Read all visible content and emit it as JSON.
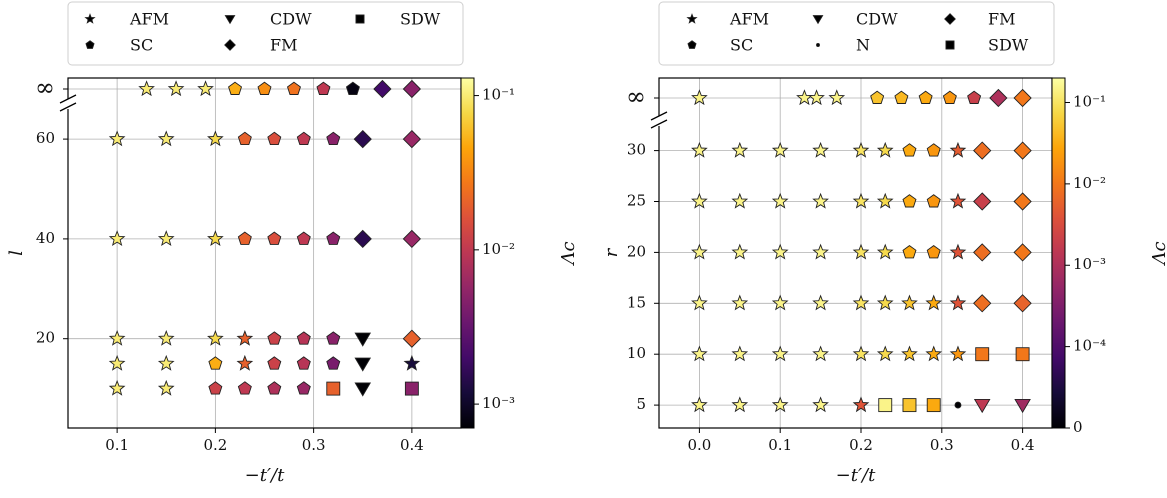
{
  "chart_data": [
    {
      "type": "scatter",
      "xlabel": "−t′/t",
      "ylabel": "l",
      "xlim": [
        0.05,
        0.45
      ],
      "x_ticks": [
        0.1,
        0.2,
        0.3,
        0.4
      ],
      "x_tick_labels": [
        "0.1",
        "0.2",
        "0.3",
        "0.4"
      ],
      "y_ticks": [
        20,
        40,
        60
      ],
      "y_tick_labels": [
        "20",
        "40",
        "60"
      ],
      "y_break": true,
      "y_top_label": "∞",
      "grid": true,
      "legend": {
        "placement": "top",
        "entries": [
          {
            "label": "AFM",
            "marker": "star"
          },
          {
            "label": "CDW",
            "marker": "triangle-down"
          },
          {
            "label": "SDW",
            "marker": "square"
          },
          {
            "label": "SC",
            "marker": "pentagon"
          },
          {
            "label": "FM",
            "marker": "diamond"
          }
        ]
      },
      "colorbar": {
        "label": "Λc",
        "scale": "log",
        "range": [
          0.0007,
          0.13
        ],
        "tick_values": [
          0.1,
          0.01,
          0.001
        ],
        "tick_labels": [
          "10⁻¹",
          "10⁻²",
          "10⁻³"
        ]
      },
      "points": [
        {
          "x": 0.13,
          "y": "∞",
          "phase": "AFM",
          "lambda": 0.1
        },
        {
          "x": 0.16,
          "y": "∞",
          "phase": "AFM",
          "lambda": 0.1
        },
        {
          "x": 0.19,
          "y": "∞",
          "phase": "AFM",
          "lambda": 0.1
        },
        {
          "x": 0.22,
          "y": "∞",
          "phase": "SC",
          "lambda": 0.05
        },
        {
          "x": 0.25,
          "y": "∞",
          "phase": "SC",
          "lambda": 0.035
        },
        {
          "x": 0.28,
          "y": "∞",
          "phase": "SC",
          "lambda": 0.025
        },
        {
          "x": 0.31,
          "y": "∞",
          "phase": "SC",
          "lambda": 0.01
        },
        {
          "x": 0.34,
          "y": "∞",
          "phase": "SC",
          "lambda": 0.0008
        },
        {
          "x": 0.37,
          "y": "∞",
          "phase": "FM",
          "lambda": 0.002
        },
        {
          "x": 0.4,
          "y": "∞",
          "phase": "FM",
          "lambda": 0.005
        },
        {
          "x": 0.1,
          "y": 60,
          "phase": "AFM",
          "lambda": 0.1
        },
        {
          "x": 0.15,
          "y": 60,
          "phase": "AFM",
          "lambda": 0.1
        },
        {
          "x": 0.2,
          "y": 60,
          "phase": "AFM",
          "lambda": 0.08
        },
        {
          "x": 0.23,
          "y": 60,
          "phase": "SC",
          "lambda": 0.02
        },
        {
          "x": 0.26,
          "y": 60,
          "phase": "SC",
          "lambda": 0.015
        },
        {
          "x": 0.29,
          "y": 60,
          "phase": "SC",
          "lambda": 0.01
        },
        {
          "x": 0.32,
          "y": 60,
          "phase": "SC",
          "lambda": 0.005
        },
        {
          "x": 0.35,
          "y": 60,
          "phase": "FM",
          "lambda": 0.0015
        },
        {
          "x": 0.4,
          "y": 60,
          "phase": "FM",
          "lambda": 0.006
        },
        {
          "x": 0.1,
          "y": 40,
          "phase": "AFM",
          "lambda": 0.1
        },
        {
          "x": 0.15,
          "y": 40,
          "phase": "AFM",
          "lambda": 0.1
        },
        {
          "x": 0.2,
          "y": 40,
          "phase": "AFM",
          "lambda": 0.08
        },
        {
          "x": 0.23,
          "y": 40,
          "phase": "SC",
          "lambda": 0.02
        },
        {
          "x": 0.26,
          "y": 40,
          "phase": "SC",
          "lambda": 0.015
        },
        {
          "x": 0.29,
          "y": 40,
          "phase": "SC",
          "lambda": 0.01
        },
        {
          "x": 0.32,
          "y": 40,
          "phase": "SC",
          "lambda": 0.005
        },
        {
          "x": 0.35,
          "y": 40,
          "phase": "FM",
          "lambda": 0.0015
        },
        {
          "x": 0.4,
          "y": 40,
          "phase": "FM",
          "lambda": 0.006
        },
        {
          "x": 0.1,
          "y": 20,
          "phase": "AFM",
          "lambda": 0.1
        },
        {
          "x": 0.15,
          "y": 20,
          "phase": "AFM",
          "lambda": 0.1
        },
        {
          "x": 0.2,
          "y": 20,
          "phase": "AFM",
          "lambda": 0.08
        },
        {
          "x": 0.23,
          "y": 20,
          "phase": "AFM",
          "lambda": 0.02
        },
        {
          "x": 0.26,
          "y": 20,
          "phase": "SC",
          "lambda": 0.012
        },
        {
          "x": 0.29,
          "y": 20,
          "phase": "SC",
          "lambda": 0.009
        },
        {
          "x": 0.32,
          "y": 20,
          "phase": "SC",
          "lambda": 0.005
        },
        {
          "x": 0.35,
          "y": 20,
          "phase": "CDW",
          "lambda": 0.0007
        },
        {
          "x": 0.4,
          "y": 20,
          "phase": "FM",
          "lambda": 0.02
        },
        {
          "x": 0.1,
          "y": 15,
          "phase": "AFM",
          "lambda": 0.1
        },
        {
          "x": 0.15,
          "y": 15,
          "phase": "AFM",
          "lambda": 0.1
        },
        {
          "x": 0.2,
          "y": 15,
          "phase": "SC",
          "lambda": 0.05
        },
        {
          "x": 0.23,
          "y": 15,
          "phase": "AFM",
          "lambda": 0.02
        },
        {
          "x": 0.26,
          "y": 15,
          "phase": "SC",
          "lambda": 0.012
        },
        {
          "x": 0.29,
          "y": 15,
          "phase": "SC",
          "lambda": 0.009
        },
        {
          "x": 0.32,
          "y": 15,
          "phase": "SC",
          "lambda": 0.004
        },
        {
          "x": 0.35,
          "y": 15,
          "phase": "CDW",
          "lambda": 0.0007
        },
        {
          "x": 0.4,
          "y": 15,
          "phase": "AFM",
          "lambda": 0.0012
        },
        {
          "x": 0.1,
          "y": 10,
          "phase": "AFM",
          "lambda": 0.1
        },
        {
          "x": 0.15,
          "y": 10,
          "phase": "AFM",
          "lambda": 0.1
        },
        {
          "x": 0.2,
          "y": 10,
          "phase": "SC",
          "lambda": 0.012
        },
        {
          "x": 0.23,
          "y": 10,
          "phase": "SC",
          "lambda": 0.01
        },
        {
          "x": 0.26,
          "y": 10,
          "phase": "SC",
          "lambda": 0.008
        },
        {
          "x": 0.29,
          "y": 10,
          "phase": "SC",
          "lambda": 0.006
        },
        {
          "x": 0.32,
          "y": 10,
          "phase": "SDW",
          "lambda": 0.02
        },
        {
          "x": 0.35,
          "y": 10,
          "phase": "CDW",
          "lambda": 0.0007
        },
        {
          "x": 0.4,
          "y": 10,
          "phase": "SDW",
          "lambda": 0.005
        }
      ]
    },
    {
      "type": "scatter",
      "xlabel": "−t′/t",
      "ylabel": "r",
      "xlim": [
        -0.05,
        0.45
      ],
      "x_ticks": [
        0.0,
        0.1,
        0.2,
        0.3,
        0.4
      ],
      "x_tick_labels": [
        "0.0",
        "0.1",
        "0.2",
        "0.3",
        "0.4"
      ],
      "y_ticks": [
        5,
        10,
        15,
        20,
        25,
        30
      ],
      "y_tick_labels": [
        "5",
        "10",
        "15",
        "20",
        "25",
        "30"
      ],
      "y_break": true,
      "y_top_label": "∞",
      "grid": true,
      "legend": {
        "placement": "top",
        "entries": [
          {
            "label": "AFM",
            "marker": "star"
          },
          {
            "label": "CDW",
            "marker": "triangle-down"
          },
          {
            "label": "FM",
            "marker": "diamond"
          },
          {
            "label": "SC",
            "marker": "pentagon"
          },
          {
            "label": "N",
            "marker": "dot"
          },
          {
            "label": "SDW",
            "marker": "square"
          }
        ]
      },
      "colorbar": {
        "label": "Λc",
        "scale": "symlog",
        "range": [
          0,
          0.2
        ],
        "tick_values": [
          0.1,
          0.01,
          0.001,
          0.0001,
          0
        ],
        "tick_labels": [
          "10⁻¹",
          "10⁻²",
          "10⁻³",
          "10⁻⁴",
          "0"
        ]
      },
      "points": [
        {
          "x": 0.0,
          "y": "∞",
          "phase": "AFM",
          "lambda": 0.15
        },
        {
          "x": 0.13,
          "y": "∞",
          "phase": "AFM",
          "lambda": 0.15
        },
        {
          "x": 0.145,
          "y": "∞",
          "phase": "AFM",
          "lambda": 0.15
        },
        {
          "x": 0.17,
          "y": "∞",
          "phase": "AFM",
          "lambda": 0.15
        },
        {
          "x": 0.22,
          "y": "∞",
          "phase": "SC",
          "lambda": 0.05
        },
        {
          "x": 0.25,
          "y": "∞",
          "phase": "SC",
          "lambda": 0.04
        },
        {
          "x": 0.28,
          "y": "∞",
          "phase": "SC",
          "lambda": 0.03
        },
        {
          "x": 0.31,
          "y": "∞",
          "phase": "SC",
          "lambda": 0.02
        },
        {
          "x": 0.34,
          "y": "∞",
          "phase": "SC",
          "lambda": 0.002
        },
        {
          "x": 0.37,
          "y": "∞",
          "phase": "FM",
          "lambda": 0.001
        },
        {
          "x": 0.4,
          "y": "∞",
          "phase": "FM",
          "lambda": 0.01
        },
        {
          "x": 0.0,
          "y": 30,
          "phase": "AFM",
          "lambda": 0.15
        },
        {
          "x": 0.05,
          "y": 30,
          "phase": "AFM",
          "lambda": 0.15
        },
        {
          "x": 0.1,
          "y": 30,
          "phase": "AFM",
          "lambda": 0.15
        },
        {
          "x": 0.15,
          "y": 30,
          "phase": "AFM",
          "lambda": 0.15
        },
        {
          "x": 0.2,
          "y": 30,
          "phase": "AFM",
          "lambda": 0.1
        },
        {
          "x": 0.23,
          "y": 30,
          "phase": "AFM",
          "lambda": 0.08
        },
        {
          "x": 0.26,
          "y": 30,
          "phase": "SC",
          "lambda": 0.03
        },
        {
          "x": 0.29,
          "y": 30,
          "phase": "SC",
          "lambda": 0.02
        },
        {
          "x": 0.32,
          "y": 30,
          "phase": "AFM",
          "lambda": 0.005
        },
        {
          "x": 0.35,
          "y": 30,
          "phase": "FM",
          "lambda": 0.008
        },
        {
          "x": 0.4,
          "y": 30,
          "phase": "FM",
          "lambda": 0.01
        },
        {
          "x": 0.0,
          "y": 25,
          "phase": "AFM",
          "lambda": 0.15
        },
        {
          "x": 0.05,
          "y": 25,
          "phase": "AFM",
          "lambda": 0.15
        },
        {
          "x": 0.1,
          "y": 25,
          "phase": "AFM",
          "lambda": 0.15
        },
        {
          "x": 0.15,
          "y": 25,
          "phase": "AFM",
          "lambda": 0.15
        },
        {
          "x": 0.2,
          "y": 25,
          "phase": "AFM",
          "lambda": 0.1
        },
        {
          "x": 0.23,
          "y": 25,
          "phase": "AFM",
          "lambda": 0.08
        },
        {
          "x": 0.26,
          "y": 25,
          "phase": "SC",
          "lambda": 0.03
        },
        {
          "x": 0.29,
          "y": 25,
          "phase": "SC",
          "lambda": 0.02
        },
        {
          "x": 0.32,
          "y": 25,
          "phase": "AFM",
          "lambda": 0.004
        },
        {
          "x": 0.35,
          "y": 25,
          "phase": "FM",
          "lambda": 0.002
        },
        {
          "x": 0.4,
          "y": 25,
          "phase": "FM",
          "lambda": 0.01
        },
        {
          "x": 0.0,
          "y": 20,
          "phase": "AFM",
          "lambda": 0.15
        },
        {
          "x": 0.05,
          "y": 20,
          "phase": "AFM",
          "lambda": 0.15
        },
        {
          "x": 0.1,
          "y": 20,
          "phase": "AFM",
          "lambda": 0.15
        },
        {
          "x": 0.15,
          "y": 20,
          "phase": "AFM",
          "lambda": 0.15
        },
        {
          "x": 0.2,
          "y": 20,
          "phase": "AFM",
          "lambda": 0.1
        },
        {
          "x": 0.23,
          "y": 20,
          "phase": "AFM",
          "lambda": 0.08
        },
        {
          "x": 0.26,
          "y": 20,
          "phase": "SC",
          "lambda": 0.03
        },
        {
          "x": 0.29,
          "y": 20,
          "phase": "SC",
          "lambda": 0.02
        },
        {
          "x": 0.32,
          "y": 20,
          "phase": "AFM",
          "lambda": 0.004
        },
        {
          "x": 0.35,
          "y": 20,
          "phase": "FM",
          "lambda": 0.008
        },
        {
          "x": 0.4,
          "y": 20,
          "phase": "FM",
          "lambda": 0.01
        },
        {
          "x": 0.0,
          "y": 15,
          "phase": "AFM",
          "lambda": 0.15
        },
        {
          "x": 0.05,
          "y": 15,
          "phase": "AFM",
          "lambda": 0.15
        },
        {
          "x": 0.1,
          "y": 15,
          "phase": "AFM",
          "lambda": 0.15
        },
        {
          "x": 0.15,
          "y": 15,
          "phase": "AFM",
          "lambda": 0.15
        },
        {
          "x": 0.2,
          "y": 15,
          "phase": "AFM",
          "lambda": 0.1
        },
        {
          "x": 0.23,
          "y": 15,
          "phase": "AFM",
          "lambda": 0.08
        },
        {
          "x": 0.26,
          "y": 15,
          "phase": "AFM",
          "lambda": 0.05
        },
        {
          "x": 0.29,
          "y": 15,
          "phase": "AFM",
          "lambda": 0.03
        },
        {
          "x": 0.32,
          "y": 15,
          "phase": "AFM",
          "lambda": 0.004
        },
        {
          "x": 0.35,
          "y": 15,
          "phase": "FM",
          "lambda": 0.008
        },
        {
          "x": 0.4,
          "y": 15,
          "phase": "FM",
          "lambda": 0.006
        },
        {
          "x": 0.0,
          "y": 10,
          "phase": "AFM",
          "lambda": 0.15
        },
        {
          "x": 0.05,
          "y": 10,
          "phase": "AFM",
          "lambda": 0.15
        },
        {
          "x": 0.1,
          "y": 10,
          "phase": "AFM",
          "lambda": 0.15
        },
        {
          "x": 0.15,
          "y": 10,
          "phase": "AFM",
          "lambda": 0.15
        },
        {
          "x": 0.2,
          "y": 10,
          "phase": "AFM",
          "lambda": 0.1
        },
        {
          "x": 0.23,
          "y": 10,
          "phase": "AFM",
          "lambda": 0.08
        },
        {
          "x": 0.26,
          "y": 10,
          "phase": "AFM",
          "lambda": 0.05
        },
        {
          "x": 0.29,
          "y": 10,
          "phase": "AFM",
          "lambda": 0.03
        },
        {
          "x": 0.32,
          "y": 10,
          "phase": "AFM",
          "lambda": 0.02
        },
        {
          "x": 0.35,
          "y": 10,
          "phase": "SDW",
          "lambda": 0.01
        },
        {
          "x": 0.4,
          "y": 10,
          "phase": "SDW",
          "lambda": 0.01
        },
        {
          "x": 0.0,
          "y": 5,
          "phase": "AFM",
          "lambda": 0.15
        },
        {
          "x": 0.05,
          "y": 5,
          "phase": "AFM",
          "lambda": 0.15
        },
        {
          "x": 0.1,
          "y": 5,
          "phase": "AFM",
          "lambda": 0.15
        },
        {
          "x": 0.15,
          "y": 5,
          "phase": "AFM",
          "lambda": 0.15
        },
        {
          "x": 0.2,
          "y": 5,
          "phase": "AFM",
          "lambda": 0.004
        },
        {
          "x": 0.23,
          "y": 5,
          "phase": "SDW",
          "lambda": 0.15
        },
        {
          "x": 0.26,
          "y": 5,
          "phase": "SDW",
          "lambda": 0.05
        },
        {
          "x": 0.29,
          "y": 5,
          "phase": "SDW",
          "lambda": 0.03
        },
        {
          "x": 0.32,
          "y": 5,
          "phase": "N",
          "lambda": 0
        },
        {
          "x": 0.35,
          "y": 5,
          "phase": "CDW",
          "lambda": 0.0015
        },
        {
          "x": 0.4,
          "y": 5,
          "phase": "CDW",
          "lambda": 0.0007
        }
      ]
    }
  ]
}
